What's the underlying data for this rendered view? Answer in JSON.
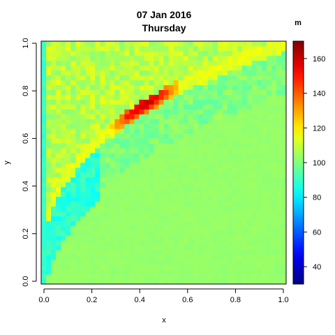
{
  "chart_data": {
    "type": "heatmap",
    "title": "07 Jan 2016",
    "subtitle": "Thursday",
    "xlabel": "x",
    "ylabel": "y",
    "xlim": [
      0,
      1
    ],
    "ylim": [
      0,
      1
    ],
    "x_ticks": [
      "0.0",
      "0.2",
      "0.4",
      "0.6",
      "0.8",
      "1.0"
    ],
    "y_ticks": [
      "0.0",
      "0.2",
      "0.4",
      "0.6",
      "0.8",
      "1.0"
    ],
    "grid": false,
    "legend": {
      "title": "m",
      "position": "right",
      "range": [
        30,
        170
      ],
      "ticks": [
        "40",
        "60",
        "80",
        "100",
        "120",
        "140",
        "160"
      ],
      "colormap": "jet",
      "colors": [
        "#00007F",
        "#0000FF",
        "#007FFF",
        "#00FFFF",
        "#7FFF7F",
        "#FFFF00",
        "#FF7F00",
        "#FF0000",
        "#7F0000"
      ]
    },
    "field": {
      "resolution": 50,
      "background_value": 103,
      "left_edge_value": 90,
      "ridge": "y = x^0.35 (peak about 160 near x=0.4, y=0.74)",
      "note": "cell values approximated from the colored raster"
    }
  }
}
